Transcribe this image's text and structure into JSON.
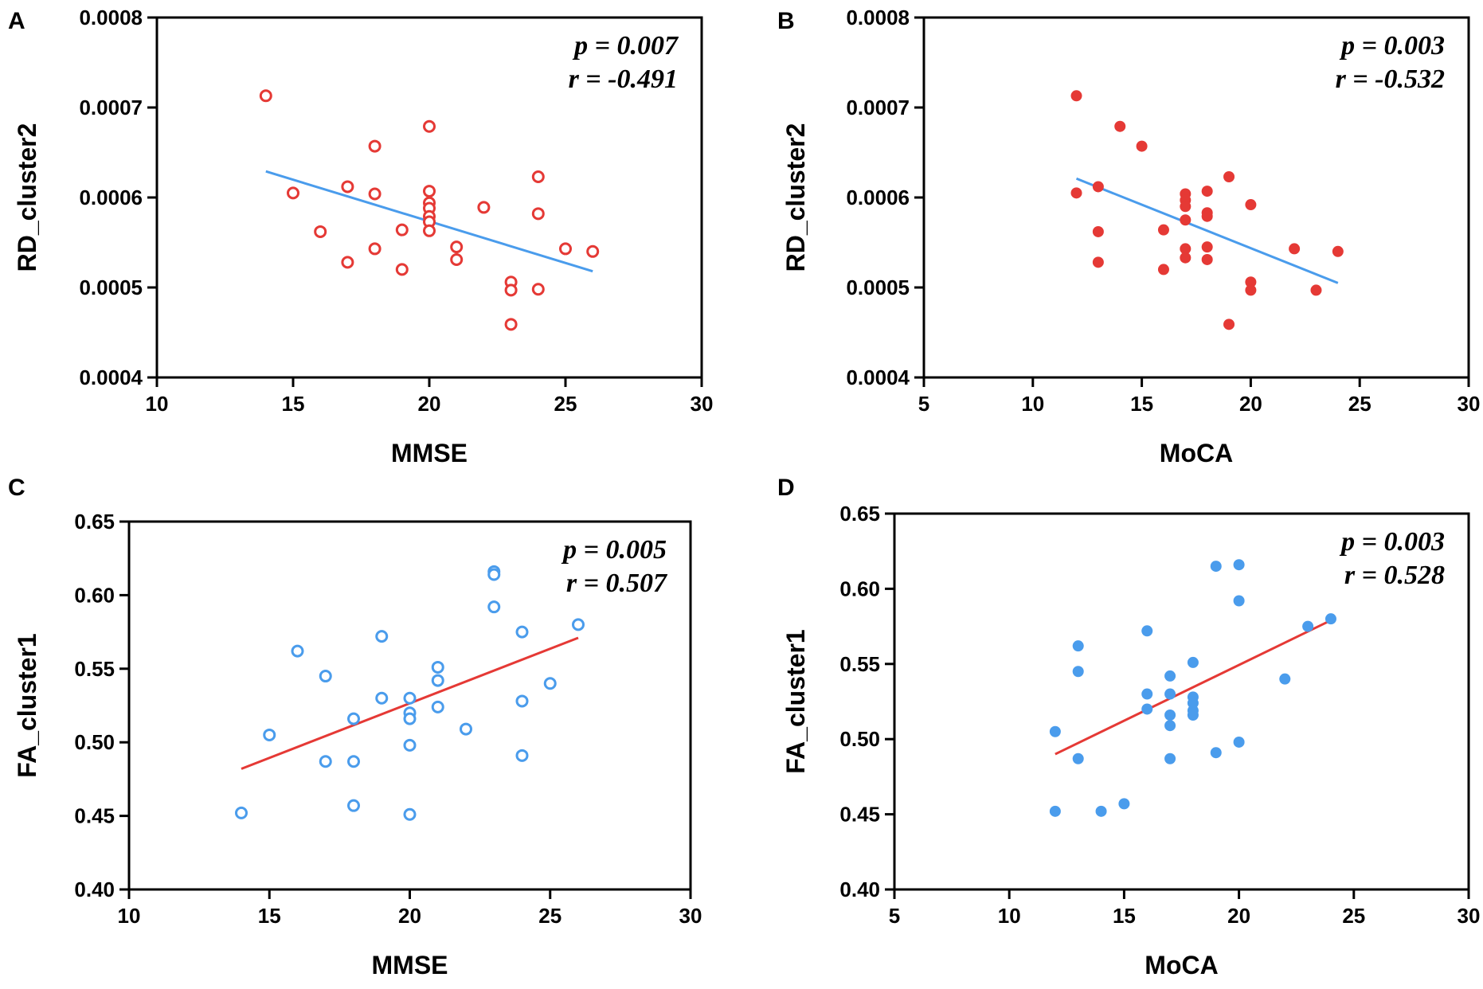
{
  "colors": {
    "red": "#e53935",
    "blue": "#4a9cec",
    "axis": "#000000"
  },
  "chart_data": [
    {
      "type": "scatter",
      "panel": "A",
      "xlabel": "MMSE",
      "ylabel": "RD_cluster2",
      "xlim": [
        10,
        30
      ],
      "ylim": [
        0.0004,
        0.0008
      ],
      "xticks": [
        10,
        15,
        20,
        25,
        30
      ],
      "yticks": [
        0.0004,
        0.0005,
        0.0006,
        0.0007,
        0.0008
      ],
      "xtick_labels": [
        "10",
        "15",
        "20",
        "25",
        "30"
      ],
      "ytick_labels": [
        "0.0004",
        "0.0005",
        "0.0006",
        "0.0007",
        "0.0008"
      ],
      "marker": "open-circle",
      "point_color": "#e53935",
      "line_color": "#4a9cec",
      "stats": {
        "p": "p = 0.007",
        "r": "r = -0.491"
      },
      "fit": {
        "x": [
          14,
          26
        ],
        "y": [
          0.000629,
          0.000518
        ]
      },
      "points": [
        [
          14,
          0.000713
        ],
        [
          15,
          0.000605
        ],
        [
          16,
          0.000562
        ],
        [
          17,
          0.000612
        ],
        [
          17,
          0.000528
        ],
        [
          18,
          0.000657
        ],
        [
          18,
          0.000604
        ],
        [
          18,
          0.000543
        ],
        [
          19,
          0.000564
        ],
        [
          19,
          0.00052
        ],
        [
          20,
          0.000679
        ],
        [
          20,
          0.000607
        ],
        [
          20,
          0.000594
        ],
        [
          20,
          0.000588
        ],
        [
          20,
          0.000579
        ],
        [
          20,
          0.000573
        ],
        [
          20,
          0.000563
        ],
        [
          21,
          0.000545
        ],
        [
          21,
          0.000531
        ],
        [
          22,
          0.000589
        ],
        [
          23,
          0.000506
        ],
        [
          23,
          0.000497
        ],
        [
          23,
          0.000459
        ],
        [
          24,
          0.000623
        ],
        [
          24,
          0.000582
        ],
        [
          24,
          0.000498
        ],
        [
          25,
          0.000543
        ],
        [
          26,
          0.00054
        ]
      ]
    },
    {
      "type": "scatter",
      "panel": "B",
      "xlabel": "MoCA",
      "ylabel": "RD_cluster2",
      "xlim": [
        5,
        30
      ],
      "ylim": [
        0.0004,
        0.0008
      ],
      "xticks": [
        5,
        10,
        15,
        20,
        25,
        30
      ],
      "yticks": [
        0.0004,
        0.0005,
        0.0006,
        0.0007,
        0.0008
      ],
      "xtick_labels": [
        "5",
        "10",
        "15",
        "20",
        "25",
        "30"
      ],
      "ytick_labels": [
        "0.0004",
        "0.0005",
        "0.0006",
        "0.0007",
        "0.0008"
      ],
      "marker": "filled-circle",
      "point_color": "#e53935",
      "line_color": "#4a9cec",
      "stats": {
        "p": "p = 0.003",
        "r": "r = -0.532"
      },
      "fit": {
        "x": [
          12,
          24
        ],
        "y": [
          0.000621,
          0.000505
        ]
      },
      "points": [
        [
          12,
          0.000713
        ],
        [
          12,
          0.000605
        ],
        [
          13,
          0.000612
        ],
        [
          13,
          0.000562
        ],
        [
          13,
          0.000528
        ],
        [
          14,
          0.000679
        ],
        [
          15,
          0.000657
        ],
        [
          16,
          0.000564
        ],
        [
          16,
          0.00052
        ],
        [
          17,
          0.000604
        ],
        [
          17,
          0.000597
        ],
        [
          17,
          0.00059
        ],
        [
          17,
          0.000575
        ],
        [
          17,
          0.000543
        ],
        [
          17,
          0.000533
        ],
        [
          18,
          0.000607
        ],
        [
          18,
          0.000583
        ],
        [
          18,
          0.000579
        ],
        [
          18,
          0.000545
        ],
        [
          18,
          0.000531
        ],
        [
          19,
          0.000623
        ],
        [
          19,
          0.000459
        ],
        [
          20,
          0.000592
        ],
        [
          20,
          0.000506
        ],
        [
          20,
          0.000497
        ],
        [
          22,
          0.000543
        ],
        [
          23,
          0.000497
        ],
        [
          24,
          0.00054
        ]
      ]
    },
    {
      "type": "scatter",
      "panel": "C",
      "xlabel": "MMSE",
      "ylabel": "FA_cluster1",
      "xlim": [
        10,
        30
      ],
      "ylim": [
        0.4,
        0.65
      ],
      "xticks": [
        10,
        15,
        20,
        25,
        30
      ],
      "yticks": [
        0.4,
        0.45,
        0.5,
        0.55,
        0.6,
        0.65
      ],
      "xtick_labels": [
        "10",
        "15",
        "20",
        "25",
        "30"
      ],
      "ytick_labels": [
        "0.40",
        "0.45",
        "0.50",
        "0.55",
        "0.60",
        "0.65"
      ],
      "marker": "open-circle",
      "point_color": "#4a9cec",
      "line_color": "#e53935",
      "stats": {
        "p": "p = 0.005",
        "r": "r = 0.507"
      },
      "fit": {
        "x": [
          14,
          26
        ],
        "y": [
          0.482,
          0.571
        ]
      },
      "points": [
        [
          14,
          0.452
        ],
        [
          15,
          0.505
        ],
        [
          16,
          0.562
        ],
        [
          17,
          0.545
        ],
        [
          17,
          0.487
        ],
        [
          18,
          0.516
        ],
        [
          18,
          0.487
        ],
        [
          18,
          0.457
        ],
        [
          19,
          0.572
        ],
        [
          19,
          0.53
        ],
        [
          20,
          0.53
        ],
        [
          20,
          0.52
        ],
        [
          20,
          0.516
        ],
        [
          20,
          0.498
        ],
        [
          20,
          0.451
        ],
        [
          21,
          0.551
        ],
        [
          21,
          0.542
        ],
        [
          21,
          0.524
        ],
        [
          22,
          0.509
        ],
        [
          23,
          0.616
        ],
        [
          23,
          0.614
        ],
        [
          23,
          0.592
        ],
        [
          24,
          0.575
        ],
        [
          24,
          0.528
        ],
        [
          24,
          0.491
        ],
        [
          25,
          0.54
        ],
        [
          26,
          0.58
        ]
      ]
    },
    {
      "type": "scatter",
      "panel": "D",
      "xlabel": "MoCA",
      "ylabel": "FA_cluster1",
      "xlim": [
        5,
        30
      ],
      "ylim": [
        0.4,
        0.65
      ],
      "xticks": [
        5,
        10,
        15,
        20,
        25,
        30
      ],
      "yticks": [
        0.4,
        0.45,
        0.5,
        0.55,
        0.6,
        0.65
      ],
      "xtick_labels": [
        "5",
        "10",
        "15",
        "20",
        "25",
        "30"
      ],
      "ytick_labels": [
        "0.40",
        "0.45",
        "0.50",
        "0.55",
        "0.60",
        "0.65"
      ],
      "marker": "filled-circle",
      "point_color": "#4a9cec",
      "line_color": "#e53935",
      "stats": {
        "p": "p = 0.003",
        "r": "r = 0.528"
      },
      "fit": {
        "x": [
          12,
          24
        ],
        "y": [
          0.49,
          0.579
        ]
      },
      "points": [
        [
          12,
          0.505
        ],
        [
          12,
          0.452
        ],
        [
          13,
          0.562
        ],
        [
          13,
          0.545
        ],
        [
          13,
          0.487
        ],
        [
          14,
          0.452
        ],
        [
          15,
          0.457
        ],
        [
          16,
          0.572
        ],
        [
          16,
          0.53
        ],
        [
          16,
          0.52
        ],
        [
          17,
          0.542
        ],
        [
          17,
          0.53
        ],
        [
          17,
          0.516
        ],
        [
          17,
          0.509
        ],
        [
          17,
          0.487
        ],
        [
          18,
          0.551
        ],
        [
          18,
          0.528
        ],
        [
          18,
          0.524
        ],
        [
          18,
          0.519
        ],
        [
          18,
          0.516
        ],
        [
          19,
          0.615
        ],
        [
          19,
          0.491
        ],
        [
          20,
          0.616
        ],
        [
          20,
          0.592
        ],
        [
          20,
          0.498
        ],
        [
          22,
          0.54
        ],
        [
          23,
          0.575
        ],
        [
          24,
          0.58
        ]
      ]
    }
  ]
}
